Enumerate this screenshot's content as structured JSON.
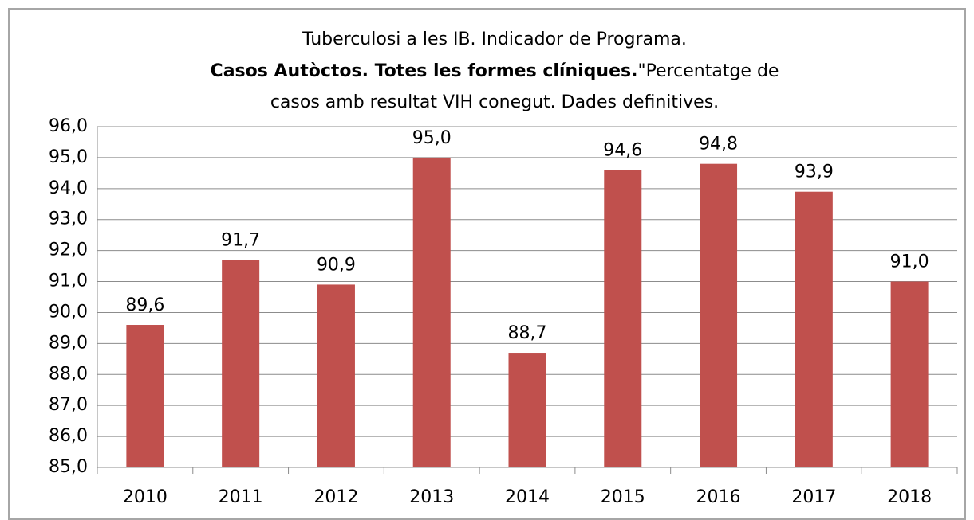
{
  "chart_data": {
    "type": "bar",
    "title": [
      "Tuberculosi a les IB. Indicador de Programa.",
      "Casos Autòctos. Totes les formes clíniques.",
      "\"Percentatge de",
      "casos amb resultat VIH conegut. Dades definitives."
    ],
    "categories": [
      "2010",
      "2011",
      "2012",
      "2013",
      "2014",
      "2015",
      "2016",
      "2017",
      "2018"
    ],
    "values": [
      89.6,
      91.7,
      90.9,
      95.0,
      88.7,
      94.6,
      94.8,
      93.9,
      91.0
    ],
    "value_labels": [
      "89,6",
      "91,7",
      "90,9",
      "95,0",
      "88,7",
      "94,6",
      "94,8",
      "93,9",
      "91,0"
    ],
    "color": "#c0504d",
    "ylim": [
      85,
      96
    ],
    "yticks": [
      {
        "value": 85,
        "label": "85,0"
      },
      {
        "value": 86,
        "label": "86,0"
      },
      {
        "value": 87,
        "label": "87,0"
      },
      {
        "value": 88,
        "label": "88,0"
      },
      {
        "value": 89,
        "label": "89,0"
      },
      {
        "value": 90,
        "label": "90,0"
      },
      {
        "value": 91,
        "label": "91,0"
      },
      {
        "value": 92,
        "label": "92,0"
      },
      {
        "value": 93,
        "label": "93,0"
      },
      {
        "value": 94,
        "label": "94,0"
      },
      {
        "value": 95,
        "label": "95,0"
      },
      {
        "value": 96,
        "label": "96,0"
      }
    ],
    "grid": true
  }
}
